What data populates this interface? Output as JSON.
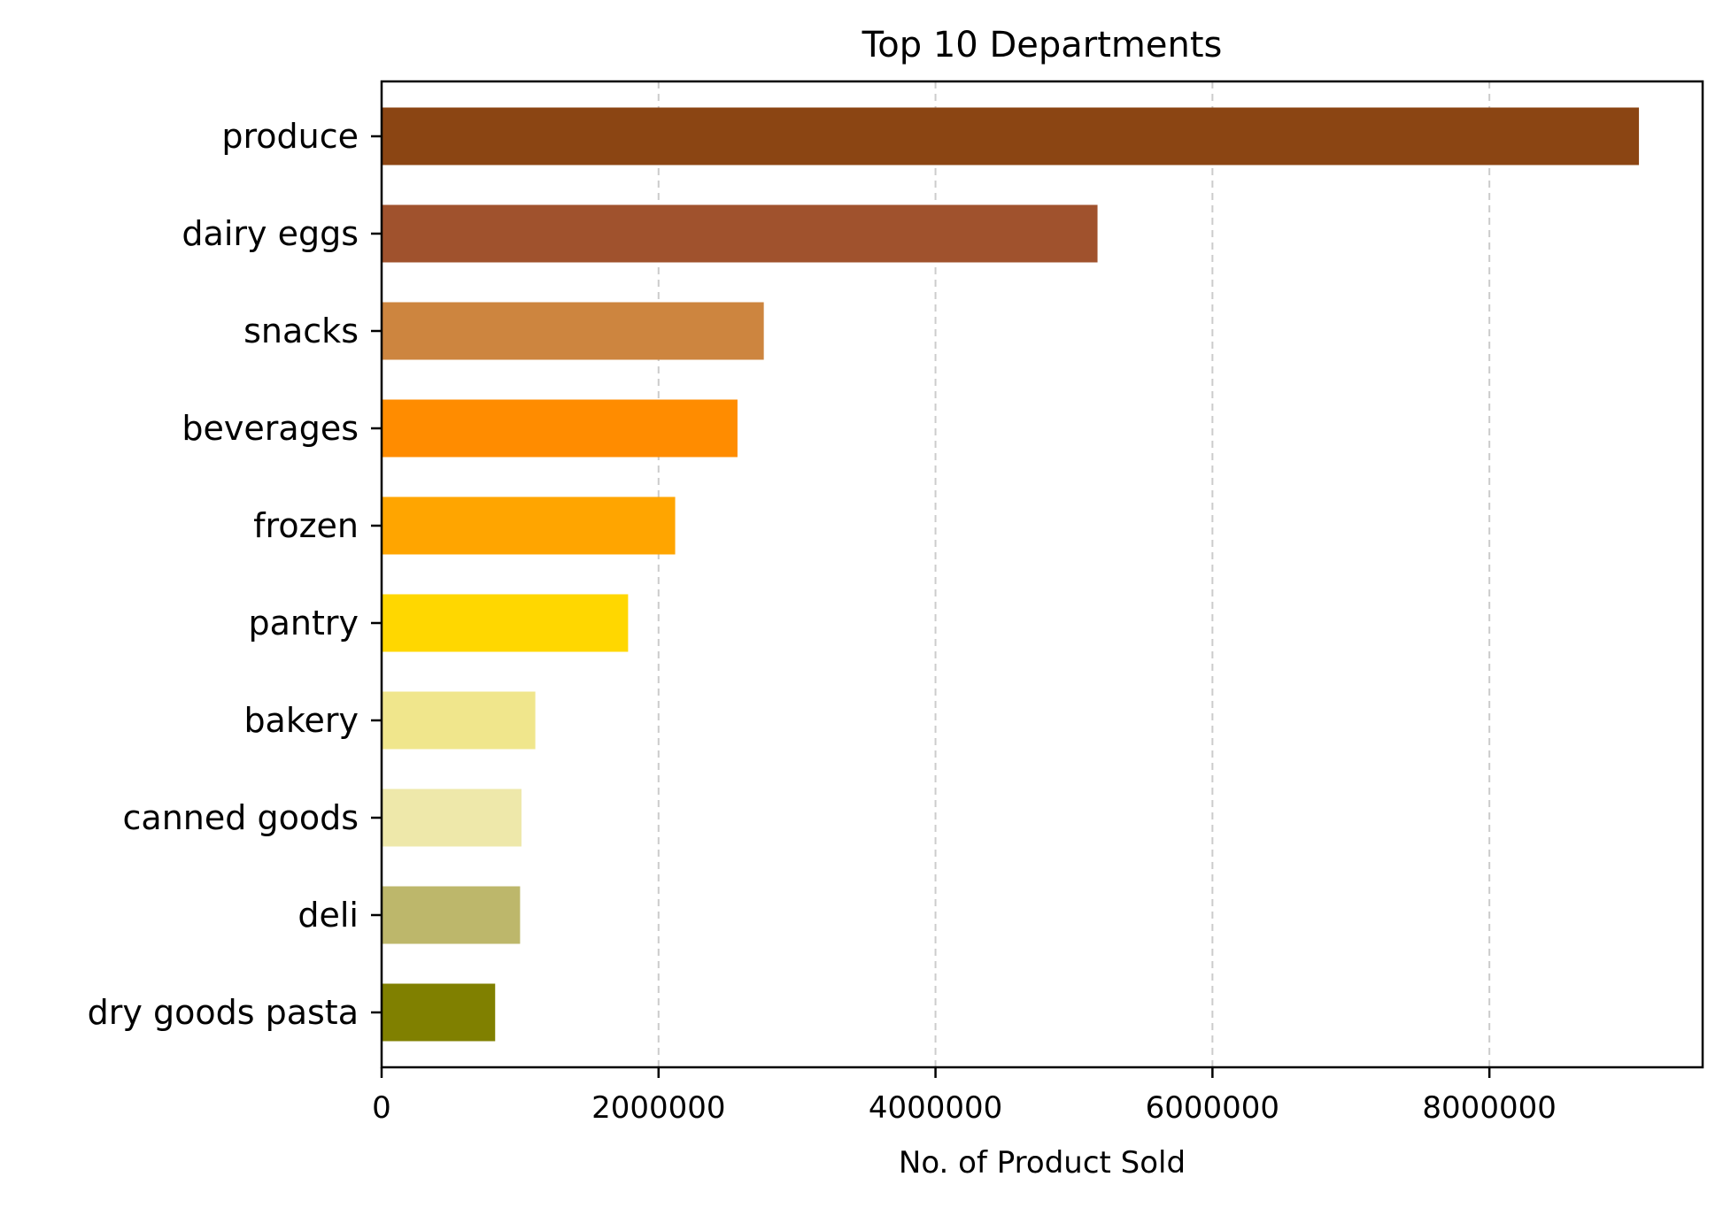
{
  "chart_data": {
    "type": "bar",
    "orientation": "horizontal",
    "title": "Top 10 Departments",
    "xlabel": "No. of Product Sold",
    "ylabel": "",
    "categories": [
      "produce",
      "dairy eggs",
      "snacks",
      "beverages",
      "frozen",
      "pantry",
      "bakery",
      "canned goods",
      "deli",
      "dry goods pasta"
    ],
    "values": [
      9080000,
      5170000,
      2760000,
      2570000,
      2120000,
      1780000,
      1110000,
      1010000,
      1000000,
      820000
    ],
    "colors": [
      "#8B4513",
      "#A0522D",
      "#CD853F",
      "#FF8C00",
      "#FFA500",
      "#FFD700",
      "#F0E68C",
      "#EEE8AA",
      "#BDB76B",
      "#808000"
    ],
    "xlim": [
      0,
      9540000
    ],
    "xticks": [
      0,
      2000000,
      4000000,
      6000000,
      8000000
    ],
    "xtick_labels": [
      "0",
      "2000000",
      "4000000",
      "6000000",
      "8000000"
    ],
    "grid": {
      "x": true,
      "y": false,
      "style": "dashed"
    },
    "legend": "none"
  }
}
